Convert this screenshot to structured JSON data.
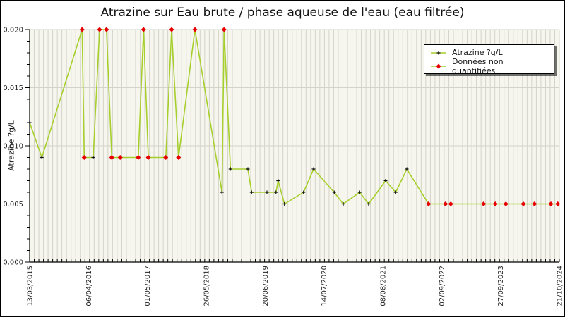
{
  "window": {
    "title": "Atrazine sur Eau brute / phase aqueuse de l'eau (eau filtrée)"
  },
  "chart_data": {
    "type": "line",
    "title": "Atrazine sur Eau brute / phase aqueuse de l'eau (eau filtrée)",
    "xlabel": "",
    "ylabel": "Atrazine ?g/L",
    "ylim": [
      0.0,
      0.02
    ],
    "y_tick_labels": [
      "0.000",
      "0.005",
      "0.010",
      "0.015",
      "0.020"
    ],
    "y_tick_values": [
      0.0,
      0.005,
      0.01,
      0.015,
      0.02
    ],
    "y_minor_tick_step": 0.001,
    "x_tick_labels": [
      "13/03/2015",
      "06/04/2016",
      "01/05/2017",
      "26/05/2018",
      "20/06/2019",
      "14/07/2020",
      "08/08/2021",
      "02/09/2022",
      "27/09/2023",
      "21/10/2024"
    ],
    "grid": {
      "vertical_minor_line_count": 115,
      "horizontal_gridlines_at": [
        0.005,
        0.01,
        0.015,
        0.02
      ]
    },
    "legend": {
      "position": "top-right",
      "items": [
        {
          "label": "Atrazine ?g/L",
          "marker": "black-plus"
        },
        {
          "label": "Données non quantifiées",
          "marker": "red-diamond"
        }
      ]
    },
    "colors": {
      "line": "#a6cf2c",
      "quantified_marker": "#111111",
      "nonquantified_marker": "#e60000",
      "plot_bg": "#f6f6ee",
      "grid_line": "#d3d3c9",
      "axis": "#000000",
      "tick_label": "#222222"
    },
    "points": [
      {
        "xf": 0.0,
        "v": 0.012,
        "nq": false
      },
      {
        "xf": 0.023,
        "v": 0.009,
        "nq": false
      },
      {
        "xf": 0.099,
        "v": 0.02,
        "nq": true
      },
      {
        "xf": 0.103,
        "v": 0.009,
        "nq": true
      },
      {
        "xf": 0.12,
        "v": 0.009,
        "nq": false
      },
      {
        "xf": 0.132,
        "v": 0.02,
        "nq": true
      },
      {
        "xf": 0.145,
        "v": 0.02,
        "nq": true
      },
      {
        "xf": 0.155,
        "v": 0.009,
        "nq": true
      },
      {
        "xf": 0.171,
        "v": 0.009,
        "nq": true
      },
      {
        "xf": 0.205,
        "v": 0.009,
        "nq": true
      },
      {
        "xf": 0.215,
        "v": 0.02,
        "nq": true
      },
      {
        "xf": 0.224,
        "v": 0.009,
        "nq": true
      },
      {
        "xf": 0.257,
        "v": 0.009,
        "nq": true
      },
      {
        "xf": 0.268,
        "v": 0.02,
        "nq": true
      },
      {
        "xf": 0.281,
        "v": 0.009,
        "nq": true
      },
      {
        "xf": 0.312,
        "v": 0.02,
        "nq": true
      },
      {
        "xf": 0.363,
        "v": 0.006,
        "nq": false
      },
      {
        "xf": 0.367,
        "v": 0.02,
        "nq": true
      },
      {
        "xf": 0.379,
        "v": 0.008,
        "nq": false
      },
      {
        "xf": 0.412,
        "v": 0.008,
        "nq": false
      },
      {
        "xf": 0.419,
        "v": 0.006,
        "nq": false
      },
      {
        "xf": 0.448,
        "v": 0.006,
        "nq": false
      },
      {
        "xf": 0.465,
        "v": 0.006,
        "nq": false
      },
      {
        "xf": 0.469,
        "v": 0.007,
        "nq": false
      },
      {
        "xf": 0.481,
        "v": 0.005,
        "nq": false
      },
      {
        "xf": 0.517,
        "v": 0.006,
        "nq": false
      },
      {
        "xf": 0.536,
        "v": 0.008,
        "nq": false
      },
      {
        "xf": 0.575,
        "v": 0.006,
        "nq": false
      },
      {
        "xf": 0.592,
        "v": 0.005,
        "nq": false
      },
      {
        "xf": 0.623,
        "v": 0.006,
        "nq": false
      },
      {
        "xf": 0.64,
        "v": 0.005,
        "nq": false
      },
      {
        "xf": 0.672,
        "v": 0.007,
        "nq": false
      },
      {
        "xf": 0.691,
        "v": 0.006,
        "nq": false
      },
      {
        "xf": 0.712,
        "v": 0.008,
        "nq": false
      },
      {
        "xf": 0.753,
        "v": 0.005,
        "nq": true
      },
      {
        "xf": 0.785,
        "v": 0.005,
        "nq": true
      },
      {
        "xf": 0.795,
        "v": 0.005,
        "nq": true
      },
      {
        "xf": 0.857,
        "v": 0.005,
        "nq": true
      },
      {
        "xf": 0.879,
        "v": 0.005,
        "nq": true
      },
      {
        "xf": 0.899,
        "v": 0.005,
        "nq": true
      },
      {
        "xf": 0.932,
        "v": 0.005,
        "nq": true
      },
      {
        "xf": 0.953,
        "v": 0.005,
        "nq": true
      },
      {
        "xf": 0.984,
        "v": 0.005,
        "nq": true
      },
      {
        "xf": 0.997,
        "v": 0.005,
        "nq": true
      }
    ]
  }
}
